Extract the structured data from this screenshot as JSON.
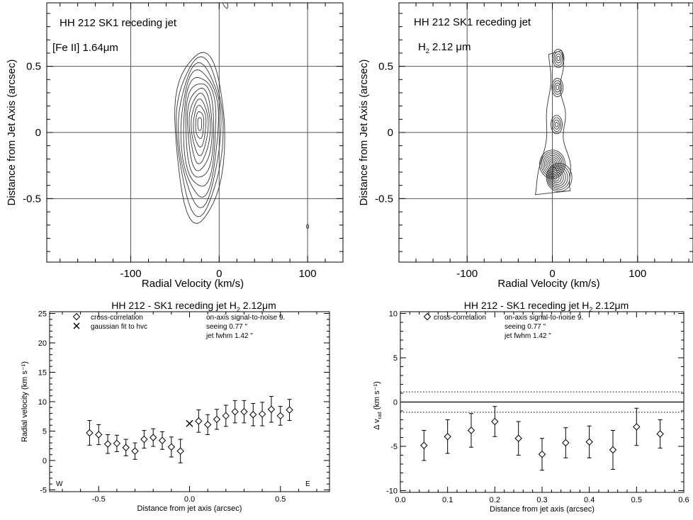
{
  "chart_data": [
    {
      "type": "contour",
      "title": "HH 212   SK1 receding jet",
      "subtitle": "[Fe II] 1.64μm",
      "xlabel": "Radial Velocity (km/s)",
      "ylabel": "Distance from Jet Axis (arcsec)",
      "xlim": [
        -195,
        140
      ],
      "ylim": [
        -0.98,
        0.98
      ],
      "xticks": [
        -100,
        0,
        100
      ],
      "xtick_labels": [
        "-100",
        "0",
        "100"
      ],
      "yticks": [
        -0.5,
        0,
        0.5
      ],
      "ytick_labels": [
        "-0.5",
        "0",
        "0.5"
      ],
      "grid": true,
      "contour_center": {
        "x": -22,
        "y": 0.07
      },
      "contour_levels": 12,
      "outer_extent": {
        "x": [
          -48,
          8
        ],
        "y": [
          -0.68,
          0.6
        ]
      }
    },
    {
      "type": "contour",
      "title": "HH 212  SK1   receding jet",
      "subtitle_main": "H",
      "subtitle_sub": "2",
      "subtitle_rest": "2.12   μm",
      "xlabel": "Radial Velocity (km/s)",
      "ylabel": "Distance from Jet Axis (arcsec)",
      "xlim": [
        -180,
        165
      ],
      "ylim": [
        -0.98,
        0.98
      ],
      "xticks": [
        -100,
        0,
        100
      ],
      "xtick_labels": [
        "-100",
        "0",
        "100"
      ],
      "yticks": [
        -0.5,
        0,
        0.5
      ],
      "ytick_labels": [
        "-0.5",
        "0",
        "0.5"
      ],
      "grid": true,
      "knots": [
        {
          "x": 7,
          "y": 0.56
        },
        {
          "x": 6,
          "y": 0.34
        },
        {
          "x": 5,
          "y": 0.06
        },
        {
          "x": 0,
          "y": -0.24
        },
        {
          "x": 3,
          "y": -0.34
        }
      ]
    },
    {
      "type": "scatter",
      "title_main": "HH 212 - SK1 receding jet   H",
      "title_sub": "2",
      "title_rest": "2.12μm",
      "xlabel": "Distance from jet axis (arcsec)",
      "ylabel": "Radial velocity (km s⁻¹)",
      "xlim": [
        -0.77,
        0.77
      ],
      "ylim": [
        -5.3,
        25.3
      ],
      "xticks": [
        -0.5,
        0.0,
        0.5
      ],
      "xtick_labels": [
        "-0.5",
        "0.0",
        "0.5"
      ],
      "yticks": [
        -5,
        0,
        5,
        10,
        15,
        20,
        25
      ],
      "ytick_labels": [
        "-5",
        "0",
        "5",
        "10",
        "15",
        "20",
        "25"
      ],
      "legend": [
        {
          "marker": "diamond",
          "label": "cross-correlation"
        },
        {
          "marker": "x",
          "label": "gaussian fit to hvc"
        }
      ],
      "info": [
        "on-axis signal-to-noise  9.",
        "seeing  0.77 \"",
        "jet fwhm  1.42 \""
      ],
      "corner_labels": {
        "left": "W",
        "right": "E"
      },
      "series": [
        {
          "name": "cross-correlation",
          "x": [
            -0.55,
            -0.5,
            -0.45,
            -0.4,
            -0.35,
            -0.3,
            -0.25,
            -0.2,
            -0.15,
            -0.1,
            -0.05,
            0.05,
            0.1,
            0.15,
            0.2,
            0.25,
            0.3,
            0.35,
            0.4,
            0.45,
            0.5,
            0.55
          ],
          "y": [
            4.7,
            4.4,
            2.8,
            2.9,
            2.2,
            1.6,
            3.6,
            3.9,
            3.4,
            2.3,
            1.6,
            6.7,
            6.1,
            7.0,
            7.6,
            8.3,
            8.3,
            7.8,
            7.9,
            8.7,
            7.6,
            8.6
          ],
          "err": [
            2.1,
            1.7,
            1.6,
            1.4,
            1.4,
            1.4,
            1.5,
            1.5,
            1.5,
            1.7,
            2.0,
            1.9,
            1.7,
            1.7,
            1.8,
            1.9,
            1.9,
            1.9,
            2.0,
            2.2,
            1.6,
            1.8
          ]
        },
        {
          "name": "gaussian fit to hvc",
          "x": [
            0.0
          ],
          "y": [
            6.3
          ]
        }
      ]
    },
    {
      "type": "scatter",
      "title_main": "HH 212 - SK1 receding jet   H",
      "title_sub": "2",
      "title_rest": "2.12μm",
      "xlabel": "Distance from jet axis (arcsec)",
      "ylabel_main": "Δ v",
      "ylabel_sub": "rad",
      "ylabel_rest": "(km s⁻¹)",
      "xlim": [
        0.0,
        0.6
      ],
      "ylim": [
        -10.2,
        10.2
      ],
      "xticks": [
        0.0,
        0.1,
        0.2,
        0.3,
        0.4,
        0.5,
        0.6
      ],
      "xtick_labels": [
        "0.0",
        "0.1",
        "0.2",
        "0.3",
        "0.4",
        "0.5",
        "0.6"
      ],
      "yticks": [
        -10,
        -5,
        0,
        5,
        10
      ],
      "ytick_labels": [
        "-10",
        "-5",
        "0",
        "5",
        "10"
      ],
      "legend": [
        {
          "marker": "diamond",
          "label": "cross-correlation"
        }
      ],
      "info": [
        "on-axis signal-to-noise  9.",
        "seeing  0.77 \"",
        "jet fwhm  1.42 \""
      ],
      "hlines": [
        {
          "y": 0,
          "style": "solid"
        },
        {
          "y": 1.15,
          "style": "dotted"
        },
        {
          "y": -1.15,
          "style": "dotted"
        }
      ],
      "series": [
        {
          "name": "cross-correlation",
          "x": [
            0.05,
            0.1,
            0.15,
            0.2,
            0.25,
            0.3,
            0.35,
            0.4,
            0.45,
            0.5,
            0.55
          ],
          "y": [
            -4.9,
            -3.9,
            -3.2,
            -2.2,
            -4.1,
            -5.9,
            -4.6,
            -4.5,
            -5.4,
            -2.8,
            -3.6
          ],
          "err": [
            1.7,
            1.9,
            1.9,
            1.7,
            1.9,
            1.8,
            1.7,
            1.8,
            2.2,
            2.1,
            1.6
          ]
        }
      ]
    }
  ]
}
